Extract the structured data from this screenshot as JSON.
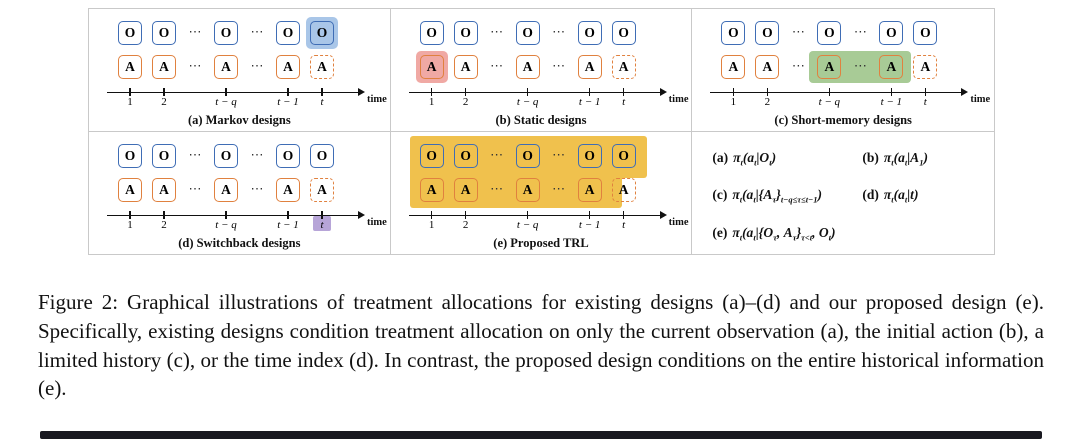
{
  "figure": {
    "colors": {
      "obs": "#3f6db5",
      "act": "#e0813f"
    },
    "obs_letter": "O",
    "act_letter": "A",
    "dots": "⋯",
    "time_label": "time",
    "ticks": [
      "1",
      "2",
      "t − q",
      "t − 1",
      "t"
    ],
    "panels": [
      {
        "id": "a",
        "caption": "(a) Markov designs",
        "highlight": {
          "kind": "cell",
          "row": "obs",
          "cell": 6,
          "color": "#a9c6e8"
        }
      },
      {
        "id": "b",
        "caption": "(b) Static designs",
        "highlight": {
          "kind": "cell",
          "row": "act",
          "cell": 0,
          "color": "#f0a9a4"
        }
      },
      {
        "id": "c",
        "caption": "(c) Short-memory designs",
        "highlight": {
          "kind": "span",
          "row": "act",
          "from": 3,
          "to": 5,
          "color": "#a8cb96"
        }
      },
      {
        "id": "d",
        "caption": "(d) Switchback designs",
        "highlight": {
          "kind": "tick",
          "cell": 6,
          "color": "#b7a5d8"
        }
      },
      {
        "id": "e",
        "caption": "(e) Proposed TRL",
        "highlight": {
          "kind": "block",
          "color": "#f0c14d"
        }
      }
    ],
    "formulas": [
      {
        "tag": "(a)",
        "parts": [
          [
            "π",
            "t"
          ],
          [
            "(a",
            "t"
          ],
          [
            "|O",
            "t"
          ],
          [
            ")",
            ""
          ]
        ]
      },
      {
        "tag": "(b)",
        "parts": [
          [
            "π",
            "t"
          ],
          [
            "(a",
            "t"
          ],
          [
            "|A",
            "1"
          ],
          [
            ")",
            ""
          ]
        ]
      },
      {
        "tag": "(c)",
        "parts": [
          [
            "π",
            "t"
          ],
          [
            "(a",
            "t"
          ],
          [
            "|{A",
            "τ"
          ],
          [
            "}",
            "t−q≤τ≤t−1"
          ],
          [
            ")",
            ""
          ]
        ]
      },
      {
        "tag": "(d)",
        "parts": [
          [
            "π",
            "t"
          ],
          [
            "(a",
            "t"
          ],
          [
            "|t",
            ""
          ],
          [
            ")",
            ""
          ]
        ]
      },
      {
        "tag": "(e)",
        "parts": [
          [
            "π",
            "t"
          ],
          [
            "(a",
            "t"
          ],
          [
            "|{O",
            "τ"
          ],
          [
            ", A",
            "τ"
          ],
          [
            "}",
            "τ<t"
          ],
          [
            ", O",
            "t"
          ],
          [
            ")",
            ""
          ]
        ]
      }
    ]
  },
  "caption": {
    "text": "Figure 2: Graphical illustrations of treatment allocations for existing designs (a)–(d) and our proposed design (e). Specifically, existing designs condition treatment allocation on only the current observation (a), the initial action (b), a limited history (c), or the time index (d). In contrast, the proposed design conditions on the entire historical information (e)."
  }
}
